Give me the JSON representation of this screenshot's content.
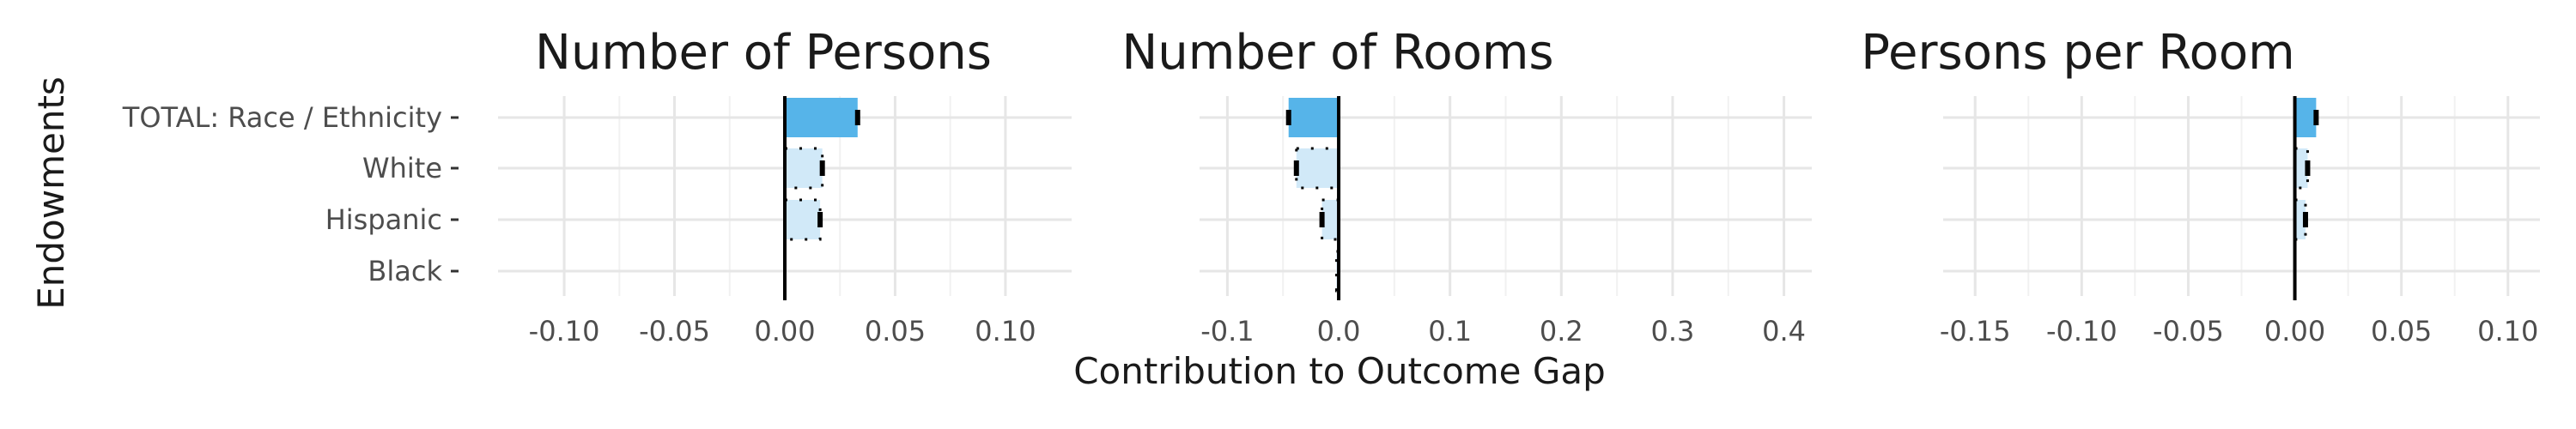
{
  "chart_data": {
    "type": "bar",
    "orientation": "horizontal",
    "ylabel": "Endowments",
    "xlabel": "Contribution to Outcome Gap",
    "categories": [
      "TOTAL: Race / Ethnicity",
      "White",
      "Hispanic",
      "Black"
    ],
    "colors": {
      "total": "#56b4e9",
      "component": "#d1e9f8",
      "zero_line": "#000000",
      "error": "#000000"
    },
    "grid": true,
    "legend": "none",
    "panels": [
      {
        "title": "Number of Persons",
        "xlim": [
          -0.13,
          0.13
        ],
        "xticks": [
          -0.1,
          -0.05,
          0.0,
          0.05,
          0.1
        ],
        "xtick_labels": [
          "-0.10",
          "-0.05",
          "0.00",
          "0.05",
          "0.10"
        ],
        "values": [
          0.033,
          0.017,
          0.016,
          0.0
        ],
        "errors": [
          0.001,
          0.001,
          0.001,
          0.0
        ],
        "ci_lower": [
          0.032,
          0.0,
          0.0,
          0.0
        ],
        "ci_upper": [
          0.034,
          0.017,
          0.016,
          0.0
        ]
      },
      {
        "title": "Number of Rooms",
        "xlim": [
          -0.125,
          0.425
        ],
        "xticks": [
          -0.1,
          0.0,
          0.1,
          0.2,
          0.3,
          0.4
        ],
        "xtick_labels": [
          "-0.1",
          "0.0",
          "0.1",
          "0.2",
          "0.3",
          "0.4"
        ],
        "values": [
          -0.045,
          -0.038,
          -0.015,
          -0.002
        ],
        "errors": [
          0.002,
          0.002,
          0.001,
          0.0
        ],
        "ci_lower": [
          -0.047,
          -0.038,
          -0.015,
          -0.002
        ],
        "ci_upper": [
          -0.043,
          0.0,
          0.0,
          0.0
        ]
      },
      {
        "title": "Persons per Room",
        "xlim": [
          -0.165,
          0.115
        ],
        "xticks": [
          -0.15,
          -0.1,
          -0.05,
          0.0,
          0.05,
          0.1
        ],
        "xtick_labels": [
          "-0.15",
          "-0.10",
          "-0.05",
          "0.00",
          "0.05",
          "0.10"
        ],
        "values": [
          0.01,
          0.006,
          0.005,
          0.0
        ],
        "errors": [
          0.001,
          0.001,
          0.001,
          0.0
        ],
        "ci_lower": [
          0.009,
          0.0,
          0.0,
          0.0
        ],
        "ci_upper": [
          0.011,
          0.006,
          0.005,
          0.0
        ]
      }
    ]
  }
}
